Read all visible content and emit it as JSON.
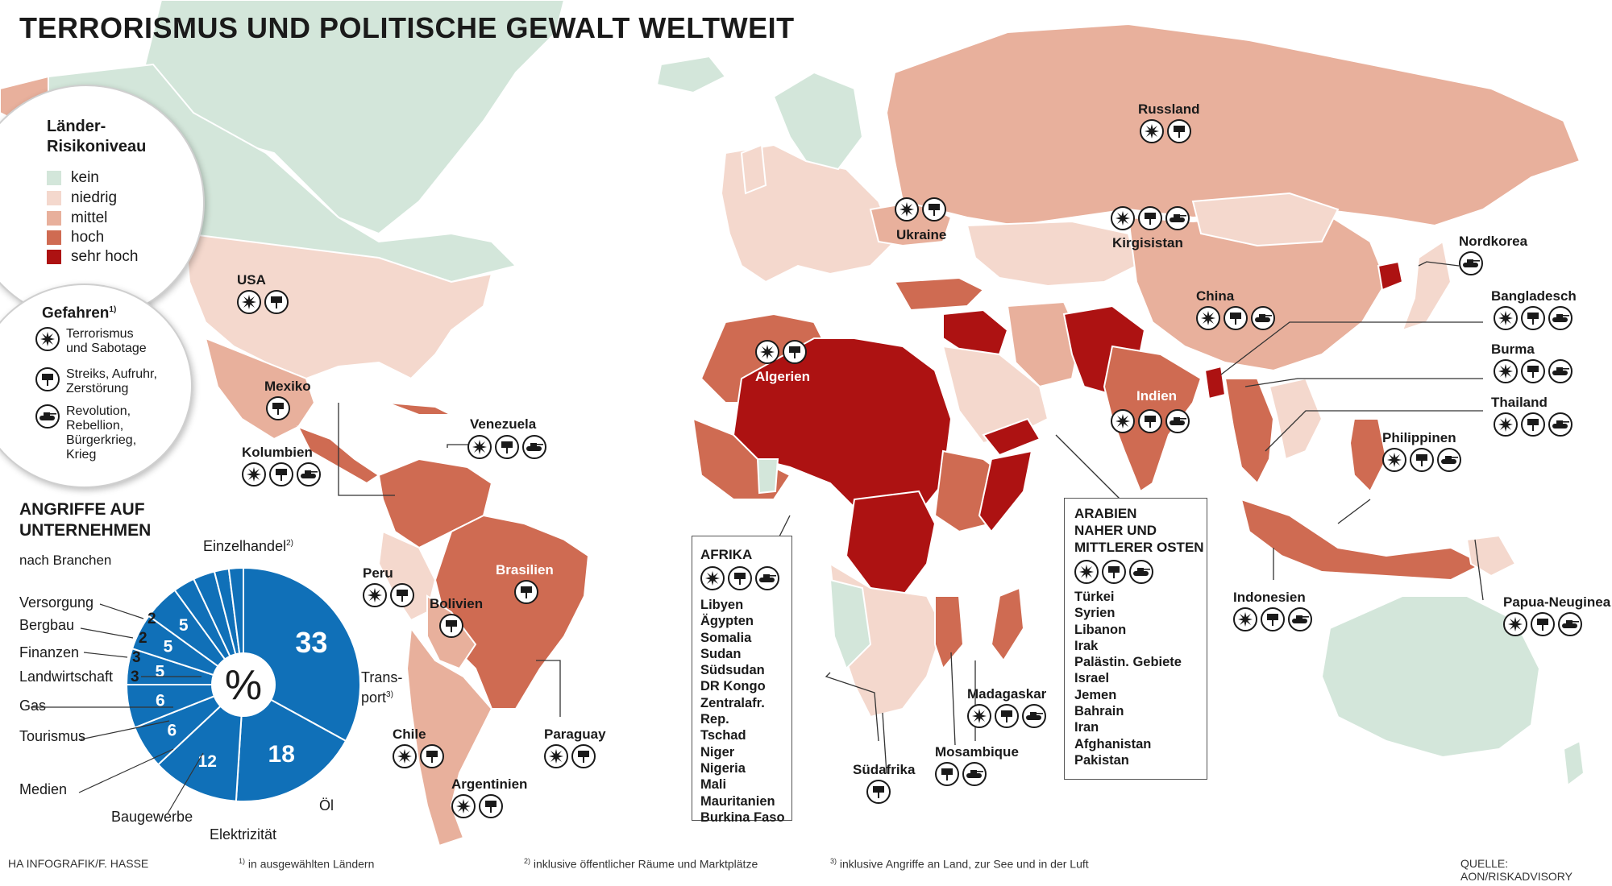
{
  "title": "TERRORISMUS UND POLITISCHE GEWALT WELTWEIT",
  "colors": {
    "kein": "#d3e6da",
    "niedrig": "#f4d8cd",
    "mittel": "#e8b09c",
    "hoch": "#cf6b52",
    "sehr_hoch": "#ad1212",
    "ocean": "#ffffff",
    "pie": "#1070b8"
  },
  "legend": {
    "risk_title_1": "Länder-",
    "risk_title_2": "Risikoniveau",
    "levels": [
      "kein",
      "niedrig",
      "mittel",
      "hoch",
      "sehr hoch"
    ],
    "hazards_title": "Gefahren",
    "hazards_sup": "1)",
    "hazards": [
      {
        "icon": "explosion-icon",
        "line1": "Terrorismus",
        "line2": "und Sabotage",
        "line3": "",
        "line4": ""
      },
      {
        "icon": "protest-sign-icon",
        "line1": "Streiks, Aufruhr,",
        "line2": "Zerstörung",
        "line3": "",
        "line4": ""
      },
      {
        "icon": "tank-icon",
        "line1": "Revolution,",
        "line2": "Rebellion,",
        "line3": "Bürgerkrieg,",
        "line4": "Krieg"
      }
    ]
  },
  "countries": {
    "usa": "USA",
    "mexiko": "Mexiko",
    "kolumbien": "Kolumbien",
    "venezuela": "Venezuela",
    "peru": "Peru",
    "bolivien": "Bolivien",
    "brasilien": "Brasilien",
    "paraguay": "Paraguay",
    "chile": "Chile",
    "argentinien": "Argentinien",
    "algerien": "Algerien",
    "ukraine": "Ukraine",
    "russland": "Russland",
    "kirgisistan": "Kirgisistan",
    "china": "China",
    "nordkorea": "Nordkorea",
    "bangladesch": "Bangladesch",
    "burma": "Burma",
    "thailand": "Thailand",
    "philippinen": "Philippinen",
    "indien": "Indien",
    "indonesien": "Indonesien",
    "papua": "Papua-Neuginea",
    "madagaskar": "Madagaskar",
    "mosambique": "Mosambique",
    "suedafrika": "Südafrika"
  },
  "afrika_box": {
    "title": "AFRIKA",
    "items": [
      "Libyen",
      "Ägypten",
      "Somalia",
      "Sudan",
      "Südsudan",
      "DR Kongo",
      "Zentralafr. Rep.",
      "Tschad",
      "Niger",
      "Nigeria",
      "Mali",
      "Mauritanien",
      "Burkina Faso"
    ]
  },
  "arabien_box": {
    "title_1": "ARABIEN",
    "title_2": "NAHER UND",
    "title_3": "MITTLERER OSTEN",
    "items": [
      "Türkei",
      "Syrien",
      "Libanon",
      "Irak",
      "Palästin. Gebiete",
      "Israel",
      "Jemen",
      "Bahrain",
      "Iran",
      "Afghanistan",
      "Pakistan"
    ]
  },
  "attacks": {
    "title_1": "ANGRIFFE AUF",
    "title_2": "UNTERNEHMEN",
    "subtitle": "nach Branchen",
    "center": "%",
    "chart_data": {
      "type": "pie",
      "labels": [
        "Einzelhandel",
        "Transport",
        "Öl",
        "Elektrizität",
        "Baugewerbe",
        "Medien",
        "Tourismus",
        "Gas",
        "Landwirtschaft",
        "Finanzen",
        "Bergbau",
        "Versorgung"
      ],
      "values": [
        33,
        18,
        12,
        6,
        6,
        5,
        5,
        5,
        3,
        3,
        2,
        2
      ]
    },
    "sector_labels": {
      "einzelhandel": "Einzelhandel",
      "einzelhandel_sup": "2)",
      "transport_1": "Trans-",
      "transport_2": "port",
      "transport_sup": "3)",
      "oel": "Öl",
      "elektrizitaet": "Elektrizität",
      "baugewerbe": "Baugewerbe",
      "medien": "Medien",
      "tourismus": "Tourismus",
      "gas": "Gas",
      "landwirtschaft": "Landwirtschaft",
      "finanzen": "Finanzen",
      "bergbau": "Bergbau",
      "versorgung": "Versorgung"
    },
    "value_labels": {
      "v33": "33",
      "v18": "18",
      "v12": "12",
      "v6a": "6",
      "v6b": "6",
      "v5a": "5",
      "v5b": "5",
      "v5c": "5",
      "v3a": "3",
      "v3b": "3",
      "v2a": "2",
      "v2b": "2"
    }
  },
  "footer": {
    "credit": "HA INFOGRAFIK/F. HASSE",
    "note1_sup": "1)",
    "note1": "in ausgewählten Ländern",
    "note2_sup": "2)",
    "note2": "inklusive öffentlicher Räume und Marktplätze",
    "note3_sup": "3)",
    "note3": "inklusive Angriffe an Land, zur See und in der Luft",
    "source": "QUELLE: AON/RISKADVISORY"
  }
}
